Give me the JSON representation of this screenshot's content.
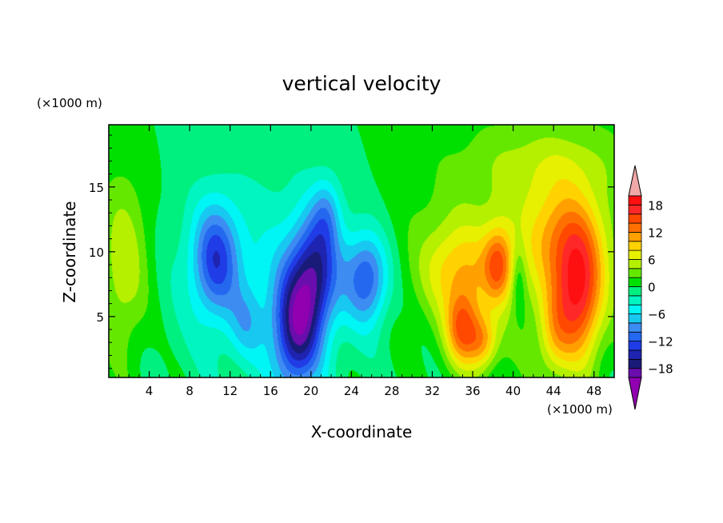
{
  "chart_data": {
    "type": "heatmap",
    "title": "vertical velocity",
    "xlabel": "X-coordinate",
    "ylabel": "Z-coordinate",
    "x_units": "(×1000 m)",
    "y_units": "(×1000 m)",
    "xlim": [
      0,
      50
    ],
    "ylim": [
      0.3,
      19.8
    ],
    "x_ticks": [
      4,
      8,
      12,
      16,
      20,
      24,
      28,
      32,
      36,
      40,
      44,
      48
    ],
    "y_ticks": [
      5,
      10,
      15
    ],
    "colorbar": {
      "levels": [
        -20,
        -18,
        -16,
        -14,
        -12,
        -10,
        -8,
        -6,
        -4,
        -2,
        0,
        2,
        4,
        6,
        8,
        10,
        12,
        14,
        16,
        18,
        20
      ],
      "tick_labels": [
        "18",
        "12",
        "6",
        "0",
        "−6",
        "−12",
        "−18"
      ],
      "tick_values": [
        18,
        12,
        6,
        0,
        -6,
        -12,
        -18
      ],
      "colors": [
        "#6a0dad",
        "#1a1a78",
        "#1e24b0",
        "#1f3ce6",
        "#2468f0",
        "#3c8cf2",
        "#18c8f0",
        "#00f5f5",
        "#00f5c0",
        "#00f080",
        "#00e000",
        "#64e800",
        "#b4f000",
        "#e6f000",
        "#ffd200",
        "#ffa000",
        "#ff7000",
        "#ff4800",
        "#ff2828",
        "#ff1010"
      ],
      "over_color": "#f0a8a8",
      "under_color": "#9000b0"
    },
    "features": [
      {
        "x": 10.5,
        "z": 9.5,
        "sx": 1.6,
        "sz": 3.0,
        "w": -11
      },
      {
        "x": 13.5,
        "z": 4.5,
        "sx": 1.2,
        "sz": 2.0,
        "w": -4
      },
      {
        "x": 18.5,
        "z": 4.0,
        "sx": 1.6,
        "sz": 3.5,
        "w": -15
      },
      {
        "x": 20.5,
        "z": 8.5,
        "sx": 1.6,
        "sz": 3.2,
        "w": -12
      },
      {
        "x": 21.5,
        "z": 13.0,
        "sx": 1.0,
        "sz": 2.0,
        "w": -5
      },
      {
        "x": 25.5,
        "z": 8.0,
        "sx": 1.5,
        "sz": 2.5,
        "w": -11
      },
      {
        "x": 16.0,
        "z": 8.0,
        "sx": 7.0,
        "sz": 6.0,
        "w": -4
      },
      {
        "x": 1.5,
        "z": 9.0,
        "sx": 1.8,
        "sz": 5.0,
        "w": 6
      },
      {
        "x": 35.0,
        "z": 4.0,
        "sx": 1.2,
        "sz": 2.0,
        "w": 12
      },
      {
        "x": 34.5,
        "z": 8.5,
        "sx": 2.5,
        "sz": 2.5,
        "w": 7
      },
      {
        "x": 38.5,
        "z": 9.0,
        "sx": 1.0,
        "sz": 2.0,
        "w": 10
      },
      {
        "x": 37.0,
        "z": 3.0,
        "sx": 1.0,
        "sz": 1.5,
        "w": 8
      },
      {
        "x": 40.5,
        "z": 8.0,
        "sx": 0.5,
        "sz": 2.0,
        "w": -4
      },
      {
        "x": 46.5,
        "z": 6.5,
        "sx": 1.6,
        "sz": 3.5,
        "w": 14
      },
      {
        "x": 45.0,
        "z": 11.0,
        "sx": 2.5,
        "sz": 3.0,
        "w": 8
      },
      {
        "x": 44.0,
        "z": 3.5,
        "sx": 1.2,
        "sz": 2.5,
        "w": 6
      },
      {
        "x": 41.0,
        "z": 11.0,
        "sx": 9.0,
        "sz": 6.0,
        "w": 4
      },
      {
        "x": 44.0,
        "z": 17.0,
        "sx": 5.0,
        "sz": 2.0,
        "w": 3
      }
    ]
  }
}
